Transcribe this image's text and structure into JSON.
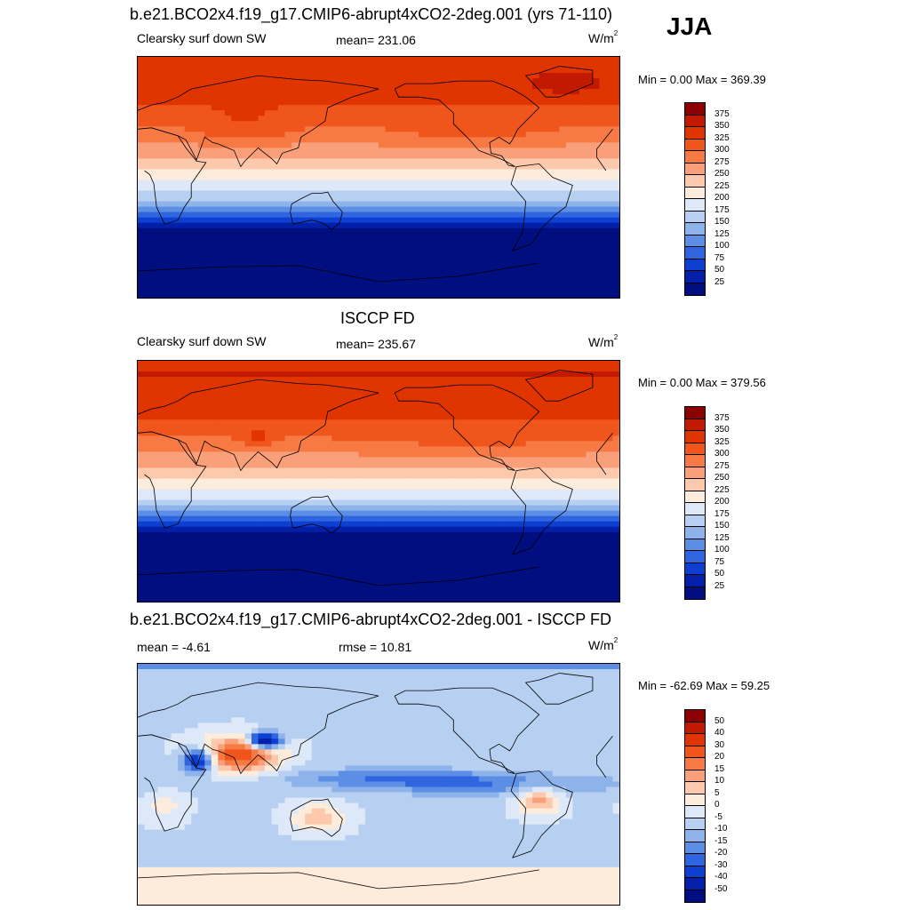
{
  "season": "JJA",
  "panels": [
    {
      "title": "b.e21.BCO2x4.f19_g17.CMIP6-abrupt4xCO2-2deg.001 (yrs 71-110)",
      "left_label": "Clearsky surf down SW",
      "center_label": "mean= 231.06",
      "units_base": "W/m",
      "units_sup": "2",
      "minmax": "Min =   0.00 Max = 369.39",
      "field": "model"
    },
    {
      "title": "ISCCP FD",
      "left_label": "Clearsky surf down SW",
      "center_label": "mean= 235.67",
      "units_base": "W/m",
      "units_sup": "2",
      "minmax": "Min =   0.00 Max = 379.56",
      "field": "obs"
    },
    {
      "title": "b.e21.BCO2x4.f19_g17.CMIP6-abrupt4xCO2-2deg.001 - ISCCP FD",
      "left_label": "mean =  -4.61",
      "center_label": "rmse =  10.81",
      "units_base": "W/m",
      "units_sup": "2",
      "minmax": "Min = -62.69 Max =  59.25",
      "field": "diff"
    }
  ],
  "colorbar_abs": {
    "labels": [
      "375",
      "350",
      "325",
      "300",
      "275",
      "250",
      "225",
      "200",
      "175",
      "150",
      "125",
      "100",
      "75",
      "50",
      "25"
    ],
    "colors": [
      "#8b0000",
      "#c21a00",
      "#e03500",
      "#f0561c",
      "#f77a45",
      "#f9a07a",
      "#fcc9ad",
      "#fdecdc",
      "#dde9f8",
      "#b7d0f1",
      "#8eb3eb",
      "#5c8ee6",
      "#2f66e0",
      "#0d3fd1",
      "#0520a8",
      "#000e80"
    ]
  },
  "colorbar_diff": {
    "labels": [
      "50",
      "40",
      "30",
      "20",
      "15",
      "10",
      "5",
      "0",
      "-5",
      "-10",
      "-15",
      "-20",
      "-30",
      "-40",
      "-50"
    ],
    "colors": [
      "#8b0000",
      "#c21a00",
      "#e03500",
      "#f0561c",
      "#f77a45",
      "#f9a07a",
      "#fcc9ad",
      "#fdecdc",
      "#dde9f8",
      "#b7d0f1",
      "#8eb3eb",
      "#5c8ee6",
      "#2f66e0",
      "#0d3fd1",
      "#0520a8",
      "#000e80"
    ]
  }
}
